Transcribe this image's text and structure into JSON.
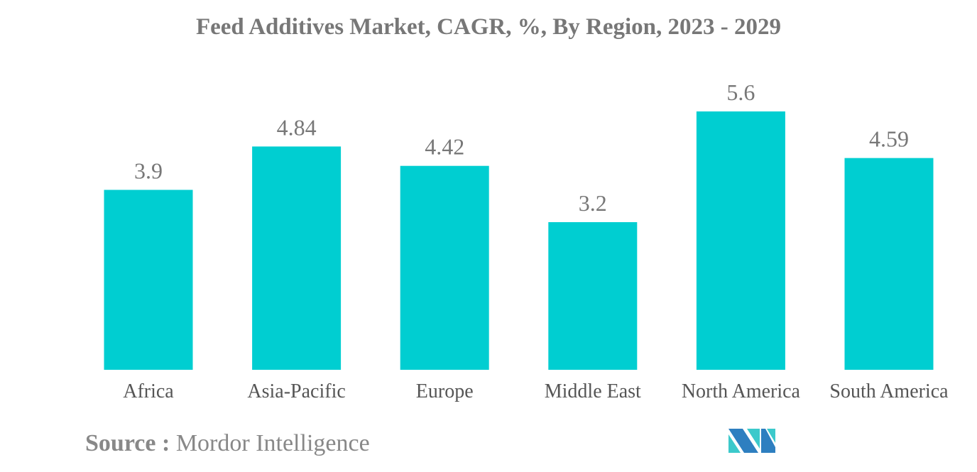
{
  "chart_data": {
    "type": "bar",
    "title": "Feed Additives Market, CAGR, %, By Region, 2023 - 2029",
    "categories": [
      "Africa",
      "Asia-Pacific",
      "Europe",
      "Middle East",
      "North America",
      "South America"
    ],
    "values": [
      3.9,
      4.84,
      4.42,
      3.2,
      5.6,
      4.59
    ],
    "data_labels": [
      "3.9",
      "4.84",
      "4.42",
      "3.2",
      "5.6",
      "4.59"
    ],
    "ylim": [
      0,
      6.5
    ],
    "grid": false,
    "bar_color": "#00CED1"
  },
  "source": {
    "label": "Source :",
    "value": "Mordor Intelligence"
  },
  "logo": {
    "text": "Mordor Intelligence",
    "colors": [
      "#2E7FC0",
      "#3CC9CB"
    ]
  }
}
